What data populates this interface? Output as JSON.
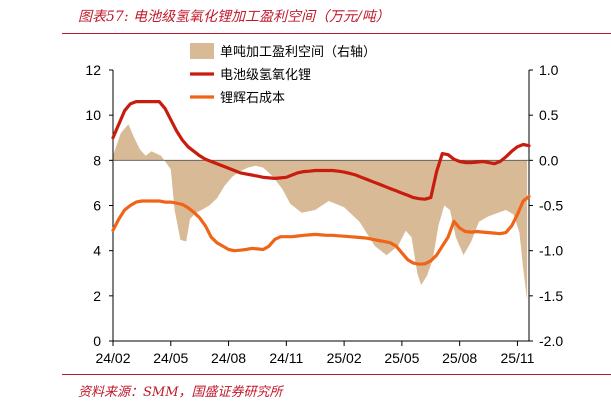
{
  "figure": {
    "title": "图表57:  电池级氢氧化锂加工盈利空间（万元/吨）",
    "source": "资料来源：SMM，国盛证券研究所"
  },
  "colors": {
    "accent": "#c0192b",
    "area": "#d8bb96",
    "lithium_hydroxide": "#c81d0e",
    "lepidolite_cost": "#f06418"
  },
  "chart_data": {
    "type": "line",
    "title": "",
    "xlabel": "",
    "ylabel": "",
    "xlim": [
      0,
      21.6
    ],
    "ylim_left": [
      0,
      12
    ],
    "ylim_right": [
      -2.0,
      1.0
    ],
    "x_ticks": [
      {
        "pos": 0,
        "label": "24/02"
      },
      {
        "pos": 3,
        "label": "24/05"
      },
      {
        "pos": 6,
        "label": "24/08"
      },
      {
        "pos": 9,
        "label": "24/11"
      },
      {
        "pos": 12,
        "label": "25/02"
      },
      {
        "pos": 15,
        "label": "25/05"
      },
      {
        "pos": 18,
        "label": "25/08"
      },
      {
        "pos": 21,
        "label": "25/11"
      }
    ],
    "y_left_ticks": [
      "0",
      "2",
      "4",
      "6",
      "8",
      "10",
      "12"
    ],
    "y_left_values": [
      0,
      2,
      4,
      6,
      8,
      10,
      12
    ],
    "y_right_ticks": [
      "-2.0",
      "-1.5",
      "-1.0",
      "-0.5",
      "0.0",
      "0.5",
      "1.0"
    ],
    "y_right_values": [
      -2.0,
      -1.5,
      -1.0,
      -0.5,
      0.0,
      0.5,
      1.0
    ],
    "legend_position": "top-center",
    "series": [
      {
        "name": "单吨加工盈利空间（右轴）",
        "type": "area",
        "axis": "right",
        "x": [
          0,
          0.4,
          0.8,
          1.1,
          1.4,
          1.7,
          2.0,
          2.5,
          3.0,
          3.2,
          3.5,
          3.8,
          4.0,
          4.3,
          4.6,
          5.0,
          5.4,
          5.8,
          6.2,
          6.6,
          7.0,
          7.4,
          7.8,
          8.3,
          8.8,
          9.2,
          9.8,
          10.5,
          11.2,
          12.0,
          12.8,
          13.6,
          14.2,
          14.8,
          15.2,
          15.5,
          15.8,
          16.0,
          16.3,
          16.6,
          16.9,
          17.2,
          17.5,
          17.8,
          18.2,
          18.6,
          19.0,
          19.5,
          20.0,
          20.4,
          20.8,
          21.1,
          21.3,
          21.5
        ],
        "values": [
          0.05,
          0.3,
          0.4,
          0.25,
          0.12,
          0.05,
          0.1,
          0.05,
          -0.1,
          -0.55,
          -0.88,
          -0.9,
          -0.65,
          -0.58,
          -0.55,
          -0.5,
          -0.42,
          -0.28,
          -0.18,
          -0.12,
          -0.08,
          -0.06,
          -0.08,
          -0.18,
          -0.32,
          -0.48,
          -0.58,
          -0.55,
          -0.45,
          -0.52,
          -0.68,
          -0.95,
          -1.05,
          -0.95,
          -0.78,
          -0.85,
          -1.25,
          -1.38,
          -1.28,
          -1.1,
          -0.72,
          -0.5,
          -0.55,
          -0.85,
          -1.05,
          -0.9,
          -0.68,
          -0.62,
          -0.58,
          -0.55,
          -0.6,
          -0.8,
          -1.2,
          -1.55
        ]
      },
      {
        "name": "电池级氢氧化锂",
        "type": "line",
        "axis": "left",
        "x": [
          0,
          0.3,
          0.6,
          0.9,
          1.2,
          1.5,
          1.8,
          2.1,
          2.4,
          2.7,
          3.0,
          3.3,
          3.6,
          3.9,
          4.2,
          4.5,
          4.8,
          5.1,
          5.4,
          5.7,
          6.0,
          6.3,
          6.6,
          6.9,
          7.2,
          7.5,
          7.8,
          8.1,
          8.4,
          8.7,
          9.0,
          9.3,
          9.6,
          9.9,
          10.2,
          10.5,
          10.8,
          11.1,
          11.4,
          11.7,
          12.0,
          12.3,
          12.6,
          12.9,
          13.2,
          13.5,
          13.8,
          14.1,
          14.4,
          14.7,
          15.0,
          15.3,
          15.6,
          15.9,
          16.2,
          16.5,
          16.8,
          17.1,
          17.4,
          17.7,
          18.0,
          18.3,
          18.6,
          18.9,
          19.2,
          19.5,
          19.8,
          20.1,
          20.4,
          20.7,
          21.0,
          21.3,
          21.6
        ],
        "values": [
          9.0,
          9.6,
          10.2,
          10.5,
          10.6,
          10.6,
          10.6,
          10.6,
          10.6,
          10.3,
          9.8,
          9.3,
          8.9,
          8.6,
          8.4,
          8.2,
          8.05,
          7.95,
          7.85,
          7.75,
          7.65,
          7.55,
          7.45,
          7.4,
          7.35,
          7.3,
          7.25,
          7.22,
          7.2,
          7.22,
          7.25,
          7.35,
          7.45,
          7.5,
          7.52,
          7.55,
          7.55,
          7.55,
          7.55,
          7.52,
          7.48,
          7.42,
          7.35,
          7.25,
          7.15,
          7.05,
          6.95,
          6.85,
          6.75,
          6.65,
          6.55,
          6.45,
          6.35,
          6.3,
          6.28,
          6.35,
          7.5,
          8.3,
          8.25,
          8.05,
          7.95,
          7.9,
          7.9,
          7.92,
          7.95,
          7.9,
          7.85,
          7.95,
          8.15,
          8.4,
          8.6,
          8.7,
          8.65
        ]
      },
      {
        "name": "锂辉石成本",
        "type": "line",
        "axis": "left",
        "x": [
          0,
          0.3,
          0.6,
          0.9,
          1.2,
          1.5,
          1.8,
          2.1,
          2.4,
          2.7,
          3.0,
          3.3,
          3.6,
          3.9,
          4.2,
          4.5,
          4.8,
          5.1,
          5.4,
          5.7,
          6.0,
          6.3,
          6.6,
          6.9,
          7.2,
          7.5,
          7.8,
          8.1,
          8.4,
          8.7,
          9.0,
          9.3,
          9.6,
          9.9,
          10.2,
          10.5,
          10.8,
          11.1,
          11.4,
          11.7,
          12.0,
          12.3,
          12.6,
          12.9,
          13.2,
          13.5,
          13.8,
          14.1,
          14.4,
          14.7,
          15.0,
          15.3,
          15.6,
          15.9,
          16.2,
          16.5,
          16.8,
          17.1,
          17.4,
          17.7,
          18.0,
          18.3,
          18.6,
          18.9,
          19.2,
          19.5,
          19.8,
          20.1,
          20.4,
          20.7,
          21.0,
          21.3,
          21.6
        ],
        "values": [
          4.9,
          5.4,
          5.8,
          6.0,
          6.15,
          6.2,
          6.2,
          6.2,
          6.2,
          6.15,
          6.15,
          6.1,
          6.05,
          5.9,
          5.7,
          5.45,
          5.1,
          4.6,
          4.35,
          4.2,
          4.05,
          4.0,
          4.02,
          4.05,
          4.1,
          4.08,
          4.05,
          4.2,
          4.5,
          4.62,
          4.62,
          4.62,
          4.65,
          4.68,
          4.7,
          4.72,
          4.7,
          4.68,
          4.68,
          4.66,
          4.64,
          4.62,
          4.6,
          4.58,
          4.55,
          4.5,
          4.45,
          4.4,
          4.35,
          4.2,
          3.9,
          3.6,
          3.45,
          3.4,
          3.42,
          3.55,
          3.8,
          4.2,
          4.6,
          5.3,
          5.0,
          4.85,
          4.82,
          4.85,
          4.82,
          4.8,
          4.78,
          4.75,
          4.8,
          5.1,
          5.6,
          6.2,
          6.4
        ]
      }
    ]
  }
}
